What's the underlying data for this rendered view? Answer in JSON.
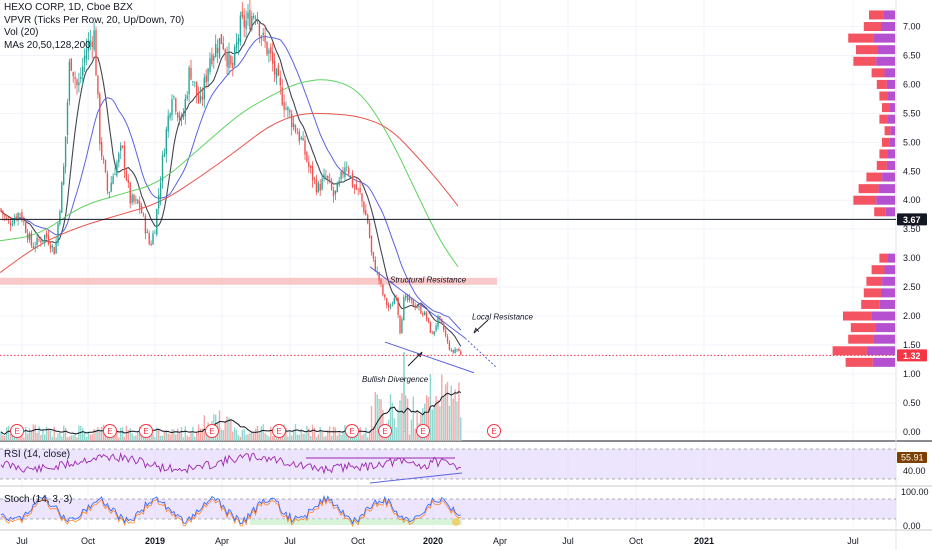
{
  "legend": {
    "symbol": "HEXO CORP, 1D, Cboe BZX",
    "vpvr": "VPVR (Ticks Per Row, 20, Up/Down, 70)",
    "vol": "Vol (20)",
    "mas": "MAs 20,50,128,200"
  },
  "panes": {
    "rsi_label": "RSI (14, close)",
    "stoch_label": "Stoch (14, 3, 3)"
  },
  "colors": {
    "up": "#26a69a",
    "down": "#ef5350",
    "ma20": "#434651",
    "ma50": "#5b63e0",
    "ma128": "#5fd35f",
    "ma200": "#e8544e",
    "vpvr_up": "#a832c8",
    "vpvr_down": "#f23645",
    "rsi": "#9c27b0",
    "band": "#e1d3fb",
    "price_badge": "#f23645",
    "level_badge": "#131722"
  },
  "chart_data": {
    "type": "candlestick",
    "x_axis_labels": [
      "Jul",
      "Oct",
      "2019",
      "Apr",
      "Jul",
      "Oct",
      "2020",
      "Apr",
      "Jul",
      "Oct",
      "2021",
      "Jul"
    ],
    "price_axis": [
      "7.00",
      "6.50",
      "6.00",
      "5.50",
      "5.00",
      "4.50",
      "4.00",
      "3.50",
      "3.00",
      "2.50",
      "2.00",
      "1.50",
      "1.00",
      "0.50",
      "0.00"
    ],
    "price_range": [
      -0.08,
      7.32
    ],
    "rsi_axis": [
      "40.00"
    ],
    "stoch_axis": [
      "100.00",
      "0.00"
    ],
    "last_price": "1.32",
    "horizontal_level": "3.67",
    "rsi_value": "55.91",
    "price_path_key_points": [
      {
        "x": "Jul 2018",
        "y": 3.8
      },
      {
        "x": "Aug 2018",
        "y": 3.2
      },
      {
        "x": "Sep 2018",
        "y": 6.8
      },
      {
        "x": "Oct 2018",
        "y": 4.3
      },
      {
        "x": "Dec 2018",
        "y": 3.1
      },
      {
        "x": "Feb 2019",
        "y": 6.0
      },
      {
        "x": "Apr 2019",
        "y": 6.8
      },
      {
        "x": "May 2019",
        "y": 7.3
      },
      {
        "x": "Aug 2019",
        "y": 5.0
      },
      {
        "x": "Sep 2019",
        "y": 4.1
      },
      {
        "x": "Oct 2019",
        "y": 3.6
      },
      {
        "x": "Oct 2019",
        "y": 2.9
      },
      {
        "x": "Nov 2019",
        "y": 1.5
      },
      {
        "x": "Dec 2019",
        "y": 2.0
      },
      {
        "x": "Jan 2020",
        "y": 1.35
      },
      {
        "x": "Feb 2020",
        "y": 1.32
      }
    ],
    "annotations": [
      {
        "text": "Structural Resistance",
        "price": 2.6
      },
      {
        "text": "Local Resistance",
        "price": 1.9
      },
      {
        "text": "Bullish Divergence",
        "price": 0.85
      }
    ],
    "earnings_marker": "E",
    "vpvr_profile": [
      {
        "price": 7.2,
        "vol": 0.5
      },
      {
        "price": 7.0,
        "vol": 0.6
      },
      {
        "price": 6.8,
        "vol": 0.9
      },
      {
        "price": 6.6,
        "vol": 0.75
      },
      {
        "price": 6.4,
        "vol": 0.8
      },
      {
        "price": 6.2,
        "vol": 0.45
      },
      {
        "price": 6.0,
        "vol": 0.35
      },
      {
        "price": 5.8,
        "vol": 0.3
      },
      {
        "price": 5.6,
        "vol": 0.25
      },
      {
        "price": 5.4,
        "vol": 0.3
      },
      {
        "price": 5.2,
        "vol": 0.2
      },
      {
        "price": 5.0,
        "vol": 0.25
      },
      {
        "price": 4.8,
        "vol": 0.3
      },
      {
        "price": 4.6,
        "vol": 0.35
      },
      {
        "price": 4.4,
        "vol": 0.55
      },
      {
        "price": 4.2,
        "vol": 0.7
      },
      {
        "price": 4.0,
        "vol": 0.8
      },
      {
        "price": 3.8,
        "vol": 0.4
      },
      {
        "price": 3.0,
        "vol": 0.3
      },
      {
        "price": 2.8,
        "vol": 0.45
      },
      {
        "price": 2.6,
        "vol": 0.55
      },
      {
        "price": 2.4,
        "vol": 0.6
      },
      {
        "price": 2.2,
        "vol": 0.65
      },
      {
        "price": 2.0,
        "vol": 1.0
      },
      {
        "price": 1.8,
        "vol": 0.85
      },
      {
        "price": 1.6,
        "vol": 0.9
      },
      {
        "price": 1.4,
        "vol": 1.2
      },
      {
        "price": 1.2,
        "vol": 0.95
      }
    ]
  }
}
